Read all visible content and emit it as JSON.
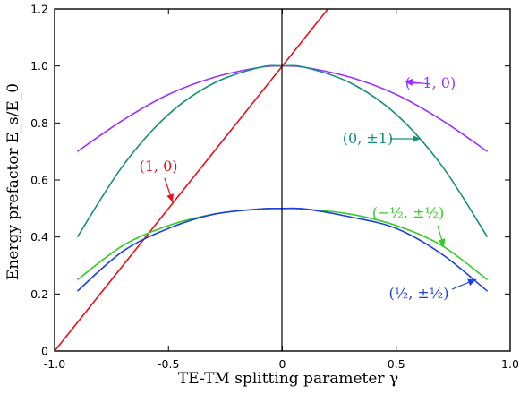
{
  "chart_data": {
    "type": "line",
    "title": "",
    "xlabel": "TE-TM splitting parameter γ",
    "ylabel": "Energy prefactor E_s/E_0",
    "xlim": [
      -1.0,
      1.0
    ],
    "ylim": [
      0,
      1.2
    ],
    "x_ticks": [
      "-1.0",
      "-0.5",
      "0",
      "0.5",
      "1.0"
    ],
    "y_ticks": [
      "0",
      "0.2",
      "0.4",
      "0.6",
      "0.8",
      "1.0",
      "1.2"
    ],
    "grid": false,
    "legend": "inline labels with arrows",
    "series": [
      {
        "name": "(−1, 0)",
        "color": "#9b30ff",
        "x": [
          -0.9,
          -0.7,
          -0.5,
          -0.3,
          -0.1,
          0,
          0.1,
          0.3,
          0.5,
          0.7,
          0.9
        ],
        "y": [
          0.7,
          0.81,
          0.9,
          0.96,
          0.995,
          1.0,
          0.995,
          0.96,
          0.9,
          0.81,
          0.7
        ]
      },
      {
        "name": "(0, ±1)",
        "color": "#17907a",
        "x": [
          -0.9,
          -0.7,
          -0.5,
          -0.3,
          -0.1,
          0,
          0.1,
          0.3,
          0.5,
          0.7,
          0.9
        ],
        "y": [
          0.4,
          0.65,
          0.83,
          0.94,
          0.995,
          1.0,
          0.995,
          0.94,
          0.83,
          0.65,
          0.4
        ]
      },
      {
        "name": "(1, 0)",
        "color": "#e8101a",
        "x": [
          -1.0,
          0.2
        ],
        "y": [
          0.0,
          1.2
        ]
      },
      {
        "name": "(−½, ±½)",
        "color": "#33cc22",
        "x": [
          -0.9,
          -0.7,
          -0.5,
          -0.3,
          -0.1,
          0,
          0.1,
          0.3,
          0.5,
          0.7,
          0.9
        ],
        "y": [
          0.25,
          0.37,
          0.44,
          0.48,
          0.498,
          0.5,
          0.498,
          0.48,
          0.44,
          0.37,
          0.25
        ]
      },
      {
        "name": "(½, ±½)",
        "color": "#1f3fe0",
        "x": [
          -0.9,
          -0.7,
          -0.5,
          -0.3,
          -0.1,
          0,
          0.1,
          0.3,
          0.5,
          0.7,
          0.9
        ],
        "y": [
          0.21,
          0.35,
          0.43,
          0.48,
          0.498,
          0.5,
          0.498,
          0.47,
          0.43,
          0.34,
          0.21
        ]
      }
    ]
  }
}
